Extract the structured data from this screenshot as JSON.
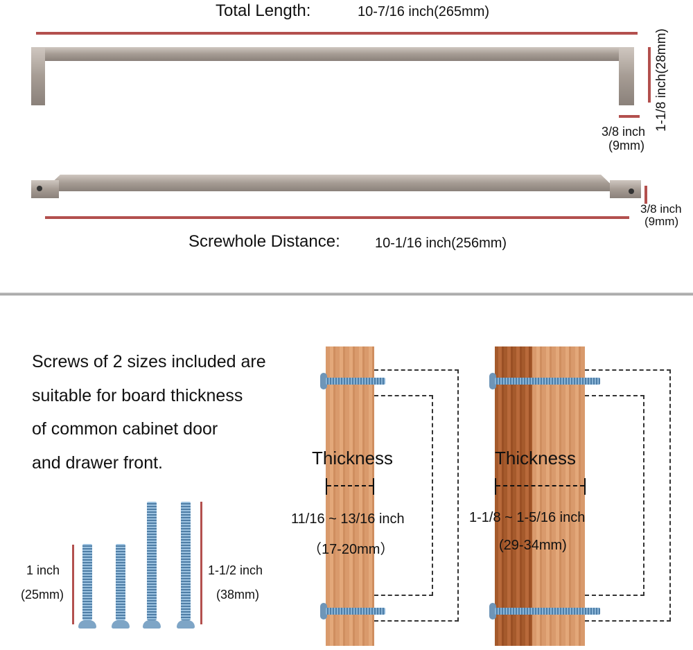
{
  "top": {
    "total_length_label": "Total Length:",
    "total_length_value": "10-7/16 inch(265mm)",
    "height_label": "1-1/8 inch(28mm)",
    "leg_width_inch": "3/8 inch",
    "leg_width_mm": "(9mm)",
    "bar_thickness_inch": "3/8 inch",
    "bar_thickness_mm": "(9mm)",
    "screwhole_label": "Screwhole Distance:",
    "screwhole_value": "10-1/16 inch(256mm)"
  },
  "bottom": {
    "description_lines": [
      "Screws of 2 sizes included are",
      "suitable for board thickness",
      "of common cabinet door",
      "and drawer front."
    ],
    "short_screw_inch": "1 inch",
    "short_screw_mm": "(25mm)",
    "long_screw_inch": "1-1/2 inch",
    "long_screw_mm": "(38mm)",
    "board1": {
      "title": "Thickness",
      "range_inch": "11/16 ~ 13/16 inch",
      "range_mm": "（17-20mm）"
    },
    "board2": {
      "title": "Thickness",
      "range_inch": "1-1/8 ~ 1-5/16 inch",
      "range_mm": "(29-34mm)"
    }
  },
  "colors": {
    "dimension_line": "#b3504e",
    "metal": "#a69c94",
    "wood": "#d99a6c",
    "screw": "#6e95b8"
  }
}
